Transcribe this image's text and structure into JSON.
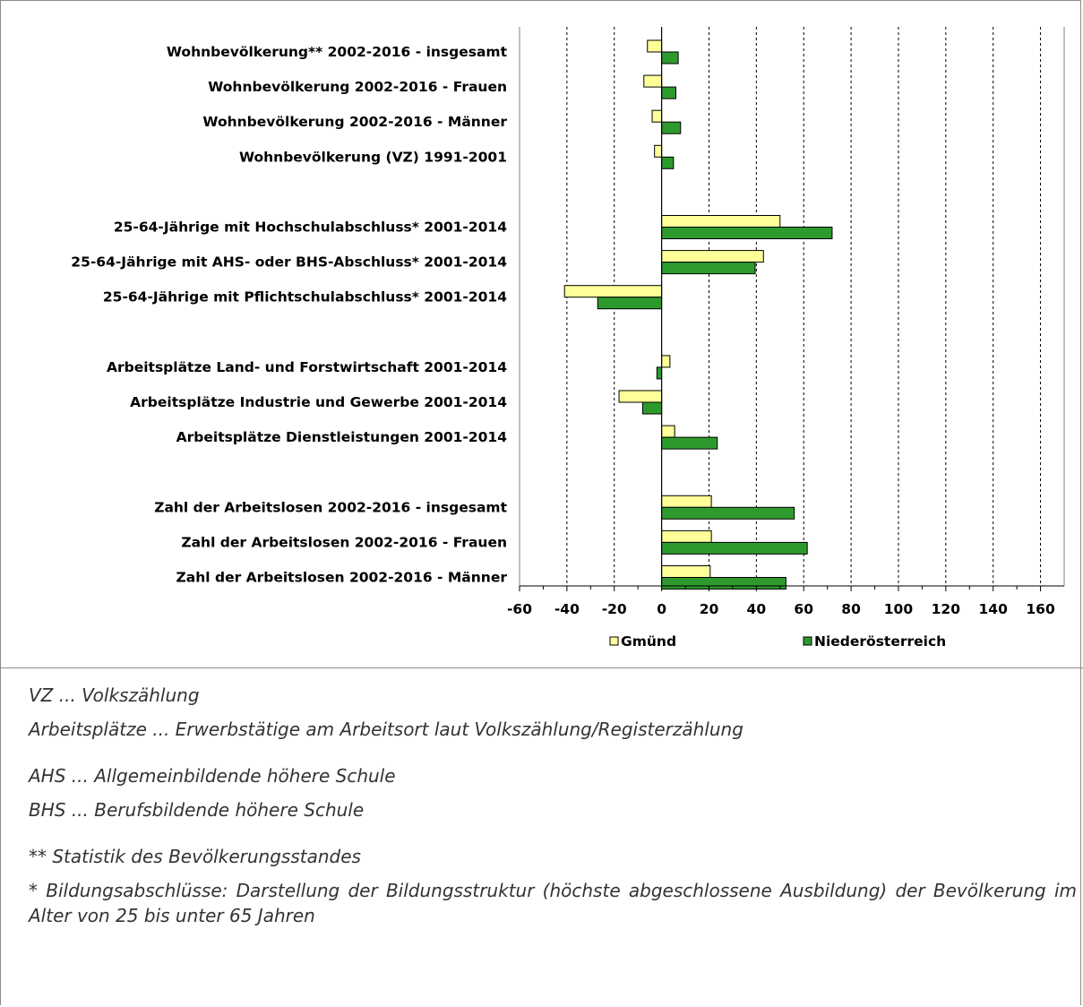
{
  "chart_data": {
    "type": "bar",
    "orientation": "horizontal",
    "categories": [
      "Wohnbevölkerung** 2002-2016 - insgesamt",
      "Wohnbevölkerung 2002-2016 - Frauen",
      "Wohnbevölkerung 2002-2016 - Männer",
      "Wohnbevölkerung (VZ) 1991-2001",
      "",
      "25-64-Jährige mit Hochschulabschluss* 2001-2014",
      "25-64-Jährige mit AHS- oder BHS-Abschluss* 2001-2014",
      "25-64-Jährige mit Pflichtschulabschluss* 2001-2014",
      "",
      "Arbeitsplätze Land- und Forstwirtschaft 2001-2014",
      "Arbeitsplätze Industrie und Gewerbe 2001-2014",
      "Arbeitsplätze Dienstleistungen 2001-2014",
      "",
      "Zahl der Arbeitslosen 2002-2016 - insgesamt",
      "Zahl der Arbeitslosen 2002-2016 - Frauen",
      "Zahl der Arbeitslosen 2002-2016 - Männer"
    ],
    "series": [
      {
        "name": "Gmünd",
        "color": "#ffff99",
        "values": [
          -6,
          -7.5,
          -4,
          -3,
          null,
          50,
          43,
          -41,
          null,
          3.5,
          -18,
          5.5,
          null,
          21,
          21,
          20.5
        ]
      },
      {
        "name": "Niederösterreich",
        "color": "#2e9a2e",
        "values": [
          7,
          6,
          8,
          5,
          null,
          72,
          39.5,
          -27,
          null,
          -2,
          -8,
          23.5,
          null,
          56,
          61.5,
          52.5
        ]
      }
    ],
    "xlim": [
      -60,
      170
    ],
    "xticks": [
      "-60",
      "-40",
      "-20",
      "0",
      "20",
      "40",
      "60",
      "80",
      "100",
      "120",
      "140",
      "160"
    ],
    "grid": "vertical-dashed",
    "legend_position": "bottom"
  },
  "notes": [
    "VZ ... Volkszählung",
    "Arbeitsplätze ... Erwerbstätige am Arbeitsort laut Volkszählung/Registerzählung",
    "AHS ... Allgemeinbildende höhere Schule",
    "BHS ... Berufsbildende höhere Schule",
    "** Statistik des Bevölkerungsstandes",
    "* Bildungsabschlüsse: Darstellung der Bildungsstruktur (höchste abgeschlossene Ausbildung) der Bevölkerung im Alter von 25 bis unter 65 Jahren"
  ]
}
